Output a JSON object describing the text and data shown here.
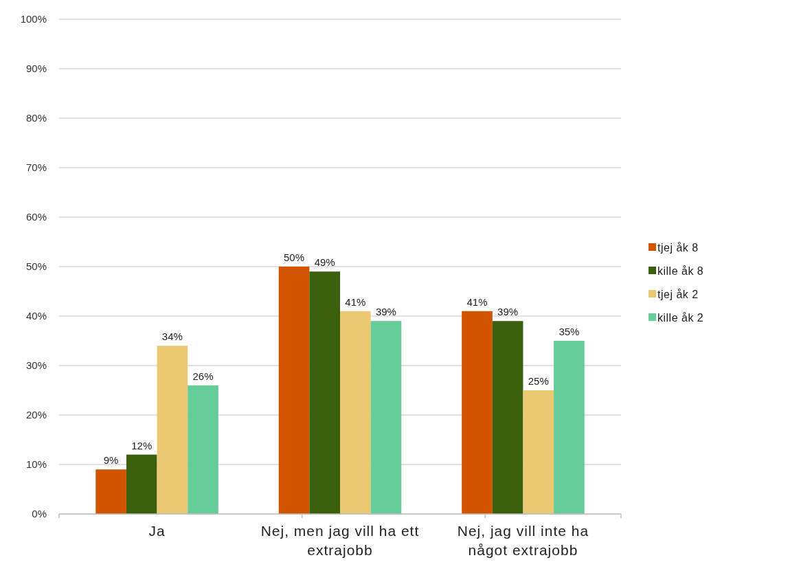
{
  "chart_data": {
    "type": "bar",
    "categories": [
      "Ja",
      "Nej, men jag vill ha ett extrajobb",
      "Nej, jag vill inte ha något extrajobb"
    ],
    "series": [
      {
        "name": "tjej åk 8",
        "color": "#d35400",
        "values": [
          9,
          50,
          41
        ],
        "value_labels": [
          "9%",
          "50%",
          "41%"
        ]
      },
      {
        "name": "kille åk 8",
        "color": "#3a5f0d",
        "values": [
          12,
          49,
          39
        ],
        "value_labels": [
          "12%",
          "49%",
          "39%"
        ]
      },
      {
        "name": "tjej åk 2",
        "color": "#ebc872",
        "values": [
          34,
          41,
          25
        ],
        "value_labels": [
          "34%",
          "41%",
          "25%"
        ]
      },
      {
        "name": "kille åk 2",
        "color": "#66cc99",
        "values": [
          26,
          39,
          35
        ],
        "value_labels": [
          "26%",
          "39%",
          "35%"
        ]
      }
    ],
    "ylim": [
      0,
      100
    ],
    "yticks": [
      {
        "value": 0,
        "label": "0%"
      },
      {
        "value": 10,
        "label": "10%"
      },
      {
        "value": 20,
        "label": "20%"
      },
      {
        "value": 30,
        "label": "30%"
      },
      {
        "value": 40,
        "label": "40%"
      },
      {
        "value": 50,
        "label": "50%"
      },
      {
        "value": 60,
        "label": "60%"
      },
      {
        "value": 70,
        "label": "70%"
      },
      {
        "value": 80,
        "label": "80%"
      },
      {
        "value": 90,
        "label": "90%"
      },
      {
        "value": 100,
        "label": "100%"
      }
    ],
    "grid": "y",
    "legend": "right"
  }
}
